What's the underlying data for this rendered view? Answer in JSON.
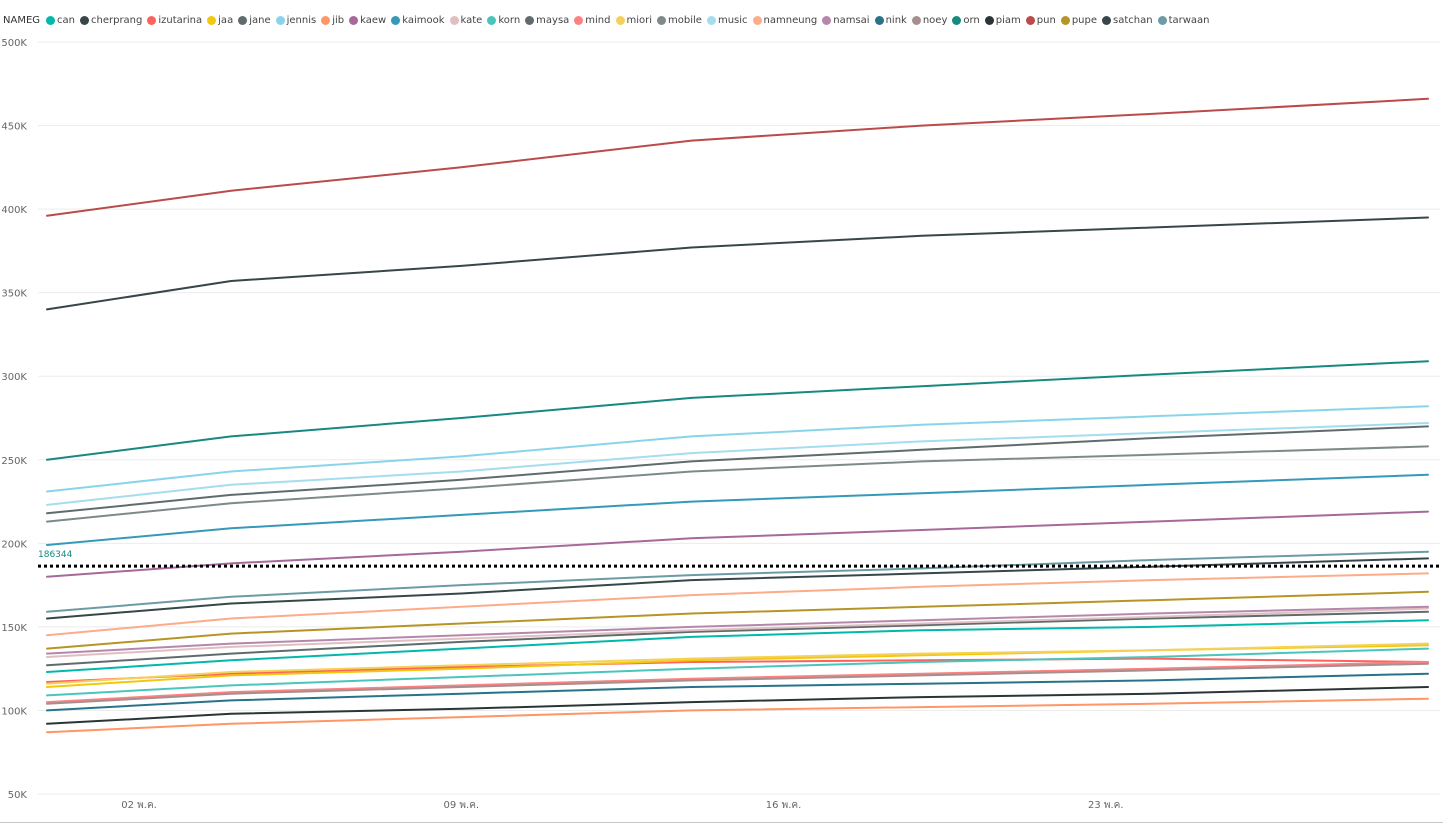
{
  "chart_data": {
    "type": "line",
    "legend": {
      "title": "NAMEG",
      "placement": "top-left"
    },
    "y_axis": {
      "min": 50000,
      "max": 500000,
      "ticks": [
        50000,
        100000,
        150000,
        200000,
        250000,
        300000,
        350000,
        400000,
        450000,
        500000
      ],
      "tick_labels": [
        "50K",
        "100K",
        "150K",
        "200K",
        "250K",
        "300K",
        "350K",
        "400K",
        "450K",
        "500K"
      ]
    },
    "x_axis": {
      "range": [
        "2020-04-30",
        "2020-05-30"
      ],
      "ticks": [
        "2020-05-02",
        "2020-05-09",
        "2020-05-16",
        "2020-05-23"
      ],
      "tick_labels": [
        "02 พ.ค.",
        "09 พ.ค.",
        "16 พ.ค.",
        "23 พ.ค."
      ]
    },
    "grid": true,
    "x": [
      "2020-04-30",
      "2020-05-04",
      "2020-05-09",
      "2020-05-14",
      "2020-05-19",
      "2020-05-24",
      "2020-05-30"
    ],
    "reference_line": {
      "value": 186344,
      "label": "186344",
      "color": "#118DFF"
    },
    "series": [
      {
        "name": "can",
        "color": "#01B8AA",
        "values": [
          123000,
          130000,
          137000,
          144000,
          148000,
          150000,
          154000
        ]
      },
      {
        "name": "cherprang",
        "color": "#374649",
        "values": [
          155000,
          164000,
          170000,
          178000,
          182000,
          186000,
          191000
        ]
      },
      {
        "name": "izutarina",
        "color": "#FD625E",
        "values": [
          117000,
          122000,
          126000,
          129000,
          130000,
          131000,
          129000
        ]
      },
      {
        "name": "jaa",
        "color": "#F2C80F",
        "values": [
          114000,
          121000,
          125000,
          130000,
          133000,
          136000,
          139000
        ]
      },
      {
        "name": "jane",
        "color": "#5F6B6D",
        "values": [
          127000,
          134000,
          141000,
          147000,
          151000,
          155000,
          159000
        ]
      },
      {
        "name": "jennis",
        "color": "#8AD4EB",
        "values": [
          231000,
          243000,
          252000,
          264000,
          271000,
          276000,
          282000
        ]
      },
      {
        "name": "jib",
        "color": "#FE9666",
        "values": [
          87000,
          92000,
          96000,
          100000,
          102000,
          104000,
          107000
        ]
      },
      {
        "name": "kaew",
        "color": "#A66999",
        "values": [
          180000,
          188000,
          195000,
          203000,
          208000,
          213000,
          219000
        ]
      },
      {
        "name": "kaimook",
        "color": "#3599B8",
        "values": [
          199000,
          209000,
          217000,
          225000,
          230000,
          235000,
          241000
        ]
      },
      {
        "name": "kate",
        "color": "#DFBFBF",
        "values": [
          132000,
          138000,
          143000,
          148000,
          152000,
          156000,
          161000
        ]
      },
      {
        "name": "korn",
        "color": "#4AC5BB",
        "values": [
          109000,
          115000,
          120000,
          125000,
          129000,
          132000,
          137000
        ]
      },
      {
        "name": "maysa",
        "color": "#5F6B6D",
        "values": [
          218000,
          229000,
          238000,
          249000,
          256000,
          263000,
          270000
        ]
      },
      {
        "name": "mind",
        "color": "#FB8281",
        "values": [
          105000,
          111000,
          115000,
          119000,
          122000,
          125000,
          129000
        ]
      },
      {
        "name": "miori",
        "color": "#F4D25A",
        "values": [
          116000,
          123000,
          127000,
          131000,
          134000,
          136000,
          140000
        ]
      },
      {
        "name": "mobile",
        "color": "#7F898A",
        "values": [
          213000,
          224000,
          233000,
          243000,
          249000,
          253000,
          258000
        ]
      },
      {
        "name": "music",
        "color": "#A4DDEE",
        "values": [
          223000,
          235000,
          243000,
          254000,
          261000,
          266000,
          272000
        ]
      },
      {
        "name": "namneung",
        "color": "#FDAB89",
        "values": [
          145000,
          155000,
          162000,
          169000,
          174000,
          178000,
          182000
        ]
      },
      {
        "name": "namsai",
        "color": "#B687AC",
        "values": [
          134000,
          140000,
          145000,
          150000,
          154000,
          158000,
          162000
        ]
      },
      {
        "name": "nink",
        "color": "#28738A",
        "values": [
          100000,
          106000,
          110000,
          114000,
          116000,
          118000,
          122000
        ]
      },
      {
        "name": "noey",
        "color": "#A78F8F",
        "values": [
          104000,
          110000,
          114000,
          118000,
          121000,
          124000,
          128000
        ]
      },
      {
        "name": "orn",
        "color": "#168980",
        "values": [
          250000,
          264000,
          275000,
          287000,
          294000,
          301000,
          309000
        ]
      },
      {
        "name": "piam",
        "color": "#293537",
        "values": [
          92000,
          98000,
          101000,
          105000,
          108000,
          110000,
          114000
        ]
      },
      {
        "name": "pun",
        "color": "#BB4A4A",
        "values": [
          396000,
          411000,
          425000,
          441000,
          450000,
          457000,
          466000
        ]
      },
      {
        "name": "pupe",
        "color": "#B59525",
        "values": [
          137000,
          146000,
          152000,
          158000,
          162000,
          166000,
          171000
        ]
      },
      {
        "name": "satchan",
        "color": "#374649",
        "values": [
          340000,
          357000,
          366000,
          377000,
          384000,
          389000,
          395000
        ]
      },
      {
        "name": "tarwaan",
        "color": "#6C9AA5",
        "values": [
          159000,
          168000,
          175000,
          181000,
          185000,
          190000,
          195000
        ]
      }
    ]
  }
}
